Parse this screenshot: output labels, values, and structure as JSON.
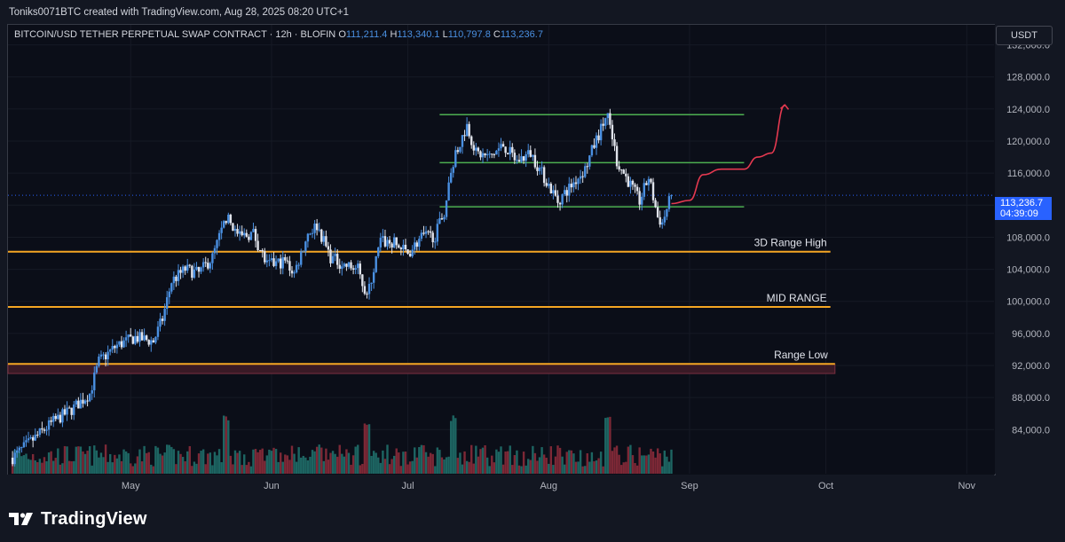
{
  "header": {
    "attribution": "Toniks0071BTC created with TradingView.com, Aug 28, 2025 08:20 UTC+1"
  },
  "symbol": {
    "title": "BITCOIN/USD TETHER PERPETUAL SWAP CONTRACT · 12h · BLOFIN",
    "open_label": "O",
    "open": "111,211.4",
    "high_label": "H",
    "high": "113,340.1",
    "low_label": "L",
    "low": "110,797.8",
    "close_label": "C",
    "close": "113,236.7"
  },
  "currency_button": "USDT",
  "last_price": {
    "value": "113,236.7",
    "countdown": "04:39:09"
  },
  "brand": {
    "logo_icon": "tradingview-logo-icon",
    "name": "TradingView"
  },
  "colors": {
    "background": "#0b0e18",
    "candle_up": "#4a90e2",
    "candle_down": "#e0e3eb",
    "volume_up": "#1f6f6a",
    "volume_down": "#8a2b3a",
    "range_line": "#f5a623",
    "channel_line": "#4caf50",
    "projection": "#e53950",
    "price_tag": "#2962ff"
  },
  "chart_data": {
    "type": "candlestick",
    "interval": "12h",
    "price_axis": {
      "ticks": [
        84000,
        88000,
        92000,
        96000,
        100000,
        104000,
        108000,
        112000,
        116000,
        120000,
        124000,
        128000,
        132000
      ],
      "tick_labels": [
        "84,000.0",
        "88,000.0",
        "92,000.0",
        "96,000.0",
        "100,000.0",
        "104,000.0",
        "108,000.0",
        "",
        "116,000.0",
        "120,000.0",
        "124,000.0",
        "128,000.0",
        "132,000.0"
      ],
      "range": [
        78500,
        134500
      ]
    },
    "time_axis": {
      "labels": [
        "May",
        "Jun",
        "Jul",
        "Aug",
        "Sep",
        "Oct",
        "Nov"
      ],
      "dates": [
        "2025-05-01",
        "2025-06-01",
        "2025-07-01",
        "2025-08-01",
        "2025-09-01",
        "2025-10-01",
        "2025-11-01"
      ],
      "range": [
        "2025-04-04",
        "2025-11-07"
      ]
    },
    "price_path": [
      [
        "2025-04-05",
        80500
      ],
      [
        "2025-04-10",
        83000
      ],
      [
        "2025-04-14",
        85000
      ],
      [
        "2025-04-18",
        86500
      ],
      [
        "2025-04-22",
        88500
      ],
      [
        "2025-04-24",
        92500
      ],
      [
        "2025-04-28",
        94500
      ],
      [
        "2025-05-02",
        95500
      ],
      [
        "2025-05-06",
        95000
      ],
      [
        "2025-05-08",
        97800
      ],
      [
        "2025-05-10",
        102500
      ],
      [
        "2025-05-13",
        104000
      ],
      [
        "2025-05-16",
        103500
      ],
      [
        "2025-05-19",
        105500
      ],
      [
        "2025-05-22",
        110500
      ],
      [
        "2025-05-25",
        108000
      ],
      [
        "2025-05-28",
        108500
      ],
      [
        "2025-05-31",
        104500
      ],
      [
        "2025-06-04",
        105000
      ],
      [
        "2025-06-06",
        103500
      ],
      [
        "2025-06-09",
        108500
      ],
      [
        "2025-06-11",
        109500
      ],
      [
        "2025-06-14",
        105500
      ],
      [
        "2025-06-17",
        104500
      ],
      [
        "2025-06-20",
        104000
      ],
      [
        "2025-06-22",
        100500
      ],
      [
        "2025-06-25",
        107500
      ],
      [
        "2025-06-28",
        107200
      ],
      [
        "2025-07-01",
        106000
      ],
      [
        "2025-07-04",
        108000
      ],
      [
        "2025-07-07",
        108200
      ],
      [
        "2025-07-09",
        111200
      ],
      [
        "2025-07-11",
        117500
      ],
      [
        "2025-07-14",
        122000
      ],
      [
        "2025-07-16",
        118500
      ],
      [
        "2025-07-19",
        118000
      ],
      [
        "2025-07-22",
        119500
      ],
      [
        "2025-07-25",
        117500
      ],
      [
        "2025-07-28",
        118500
      ],
      [
        "2025-08-01",
        114500
      ],
      [
        "2025-08-03",
        112500
      ],
      [
        "2025-08-06",
        114500
      ],
      [
        "2025-08-09",
        116500
      ],
      [
        "2025-08-11",
        119500
      ],
      [
        "2025-08-14",
        123500
      ],
      [
        "2025-08-16",
        117500
      ],
      [
        "2025-08-19",
        114500
      ],
      [
        "2025-08-21",
        112500
      ],
      [
        "2025-08-23",
        115500
      ],
      [
        "2025-08-25",
        110500
      ],
      [
        "2025-08-26",
        109800
      ],
      [
        "2025-08-28",
        113236.7
      ]
    ],
    "volume_peaks": [
      [
        "2025-05-22",
        "high"
      ],
      [
        "2025-06-22",
        "high"
      ],
      [
        "2025-07-11",
        "high"
      ],
      [
        "2025-08-14",
        "high"
      ]
    ],
    "horizontal_levels": [
      {
        "name": "3D Range High",
        "price": 106200,
        "style": "orange"
      },
      {
        "name": "MID RANGE",
        "price": 99300,
        "style": "orange"
      },
      {
        "name": "Range Low",
        "price": 92200,
        "price_low": 91000,
        "style": "orange-zone"
      },
      {
        "name": "",
        "price": 123300,
        "style": "green"
      },
      {
        "name": "",
        "price": 117300,
        "style": "green"
      },
      {
        "name": "",
        "price": 111800,
        "style": "green"
      }
    ],
    "projection_path": [
      [
        "2025-08-28",
        112200
      ],
      [
        "2025-09-01",
        112600
      ],
      [
        "2025-09-04",
        115800
      ],
      [
        "2025-09-08",
        116500
      ],
      [
        "2025-09-13",
        116500
      ],
      [
        "2025-09-16",
        118000
      ],
      [
        "2025-09-19",
        118500
      ],
      [
        "2025-09-22",
        124500
      ]
    ],
    "grid": true,
    "legend": "none"
  }
}
